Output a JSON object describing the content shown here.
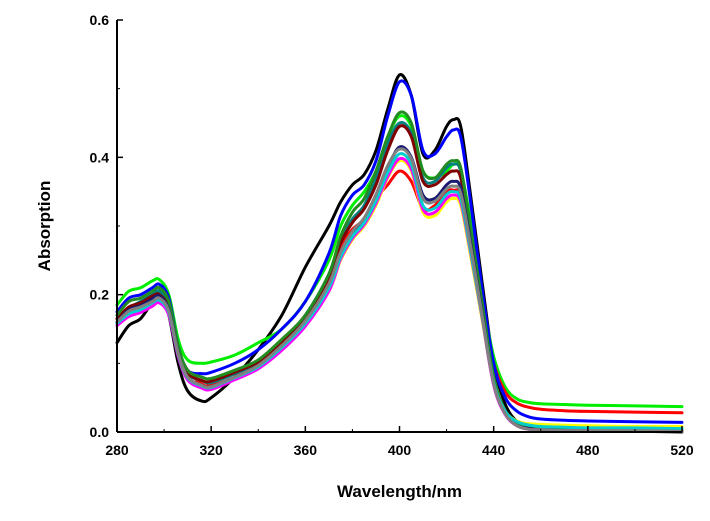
{
  "chart_data": {
    "type": "line",
    "title": "",
    "xlabel": "Wavelength/nm",
    "ylabel": "Absorption",
    "xlim": [
      280,
      520
    ],
    "ylim": [
      0.0,
      0.6
    ],
    "x_ticks": [
      280,
      320,
      360,
      400,
      440,
      480,
      520
    ],
    "x_tick_labels": [
      "280",
      "320",
      "360",
      "400",
      "440",
      "480",
      "520"
    ],
    "y_ticks": [
      0.0,
      0.2,
      0.4,
      0.6
    ],
    "y_tick_labels": [
      "0.0",
      "0.2",
      "0.4",
      "0.6"
    ],
    "grid": false,
    "legend": "none",
    "x": [
      280,
      285,
      290,
      295,
      298,
      302,
      306,
      310,
      316,
      320,
      330,
      340,
      350,
      360,
      370,
      375,
      380,
      385,
      390,
      395,
      400,
      405,
      410,
      415,
      420,
      423,
      426,
      430,
      435,
      440,
      445,
      450,
      455,
      460,
      470,
      480,
      500,
      520
    ],
    "series": [
      {
        "color": "#000000",
        "values": [
          0.13,
          0.155,
          0.165,
          0.19,
          0.205,
          0.17,
          0.1,
          0.06,
          0.045,
          0.05,
          0.08,
          0.12,
          0.17,
          0.24,
          0.3,
          0.335,
          0.36,
          0.375,
          0.41,
          0.47,
          0.52,
          0.49,
          0.405,
          0.41,
          0.445,
          0.455,
          0.445,
          0.35,
          0.22,
          0.1,
          0.04,
          0.015,
          0.008,
          0.005,
          0.003,
          0.002,
          0.001,
          0.0
        ]
      },
      {
        "color": "#00ee00",
        "values": [
          0.185,
          0.205,
          0.21,
          0.22,
          0.222,
          0.2,
          0.135,
          0.105,
          0.1,
          0.102,
          0.112,
          0.13,
          0.15,
          0.19,
          0.25,
          0.3,
          0.33,
          0.35,
          0.38,
          0.43,
          0.46,
          0.445,
          0.38,
          0.37,
          0.38,
          0.39,
          0.382,
          0.31,
          0.2,
          0.11,
          0.065,
          0.048,
          0.043,
          0.041,
          0.04,
          0.039,
          0.038,
          0.037
        ]
      },
      {
        "color": "#ff0000",
        "values": [
          0.165,
          0.18,
          0.185,
          0.195,
          0.2,
          0.18,
          0.12,
          0.09,
          0.07,
          0.068,
          0.08,
          0.1,
          0.13,
          0.17,
          0.22,
          0.27,
          0.295,
          0.31,
          0.34,
          0.36,
          0.38,
          0.365,
          0.325,
          0.33,
          0.35,
          0.352,
          0.345,
          0.28,
          0.18,
          0.1,
          0.058,
          0.042,
          0.036,
          0.033,
          0.031,
          0.03,
          0.029,
          0.028
        ]
      },
      {
        "color": "#0000ff",
        "values": [
          0.175,
          0.195,
          0.2,
          0.21,
          0.215,
          0.195,
          0.125,
          0.09,
          0.085,
          0.087,
          0.1,
          0.12,
          0.15,
          0.19,
          0.26,
          0.315,
          0.345,
          0.36,
          0.395,
          0.46,
          0.51,
          0.49,
          0.41,
          0.405,
          0.43,
          0.44,
          0.43,
          0.34,
          0.21,
          0.1,
          0.05,
          0.03,
          0.022,
          0.019,
          0.017,
          0.016,
          0.015,
          0.014
        ]
      },
      {
        "color": "#008080",
        "values": [
          0.16,
          0.18,
          0.19,
          0.2,
          0.205,
          0.185,
          0.12,
          0.085,
          0.075,
          0.072,
          0.085,
          0.1,
          0.13,
          0.17,
          0.23,
          0.28,
          0.31,
          0.33,
          0.37,
          0.42,
          0.45,
          0.435,
          0.37,
          0.365,
          0.385,
          0.39,
          0.38,
          0.3,
          0.19,
          0.08,
          0.03,
          0.012,
          0.006,
          0.004,
          0.003,
          0.003,
          0.002,
          0.002
        ]
      },
      {
        "color": "#800000",
        "values": [
          0.165,
          0.182,
          0.188,
          0.198,
          0.2,
          0.18,
          0.118,
          0.086,
          0.075,
          0.074,
          0.087,
          0.102,
          0.13,
          0.168,
          0.225,
          0.275,
          0.305,
          0.325,
          0.36,
          0.41,
          0.445,
          0.43,
          0.365,
          0.36,
          0.375,
          0.38,
          0.37,
          0.29,
          0.18,
          0.075,
          0.028,
          0.01,
          0.005,
          0.004,
          0.003,
          0.003,
          0.002,
          0.002
        ]
      },
      {
        "color": "#228b22",
        "values": [
          0.17,
          0.19,
          0.195,
          0.205,
          0.21,
          0.19,
          0.125,
          0.09,
          0.08,
          0.078,
          0.09,
          0.105,
          0.135,
          0.17,
          0.23,
          0.285,
          0.32,
          0.34,
          0.38,
          0.43,
          0.465,
          0.45,
          0.38,
          0.37,
          0.39,
          0.395,
          0.385,
          0.3,
          0.19,
          0.08,
          0.03,
          0.012,
          0.006,
          0.004,
          0.003,
          0.002,
          0.002,
          0.002
        ]
      },
      {
        "color": "#191970",
        "values": [
          0.16,
          0.178,
          0.184,
          0.194,
          0.198,
          0.178,
          0.115,
          0.08,
          0.068,
          0.066,
          0.08,
          0.096,
          0.125,
          0.162,
          0.215,
          0.26,
          0.29,
          0.31,
          0.345,
          0.385,
          0.415,
          0.4,
          0.345,
          0.34,
          0.36,
          0.365,
          0.355,
          0.28,
          0.175,
          0.07,
          0.026,
          0.009,
          0.005,
          0.003,
          0.002,
          0.002,
          0.002,
          0.001
        ]
      },
      {
        "color": "#ffff00",
        "values": [
          0.155,
          0.17,
          0.176,
          0.185,
          0.19,
          0.172,
          0.112,
          0.077,
          0.065,
          0.063,
          0.077,
          0.093,
          0.12,
          0.155,
          0.205,
          0.25,
          0.28,
          0.3,
          0.33,
          0.37,
          0.395,
          0.38,
          0.32,
          0.315,
          0.335,
          0.34,
          0.33,
          0.26,
          0.165,
          0.07,
          0.03,
          0.016,
          0.012,
          0.011,
          0.01,
          0.009,
          0.008,
          0.008
        ]
      },
      {
        "color": "#ff00ff",
        "values": [
          0.155,
          0.168,
          0.174,
          0.183,
          0.188,
          0.17,
          0.11,
          0.076,
          0.064,
          0.062,
          0.076,
          0.092,
          0.119,
          0.154,
          0.205,
          0.252,
          0.282,
          0.302,
          0.333,
          0.372,
          0.398,
          0.383,
          0.324,
          0.32,
          0.34,
          0.345,
          0.335,
          0.265,
          0.168,
          0.068,
          0.025,
          0.009,
          0.004,
          0.003,
          0.002,
          0.002,
          0.001,
          0.001
        ]
      },
      {
        "color": "#00ced1",
        "values": [
          0.158,
          0.172,
          0.178,
          0.188,
          0.192,
          0.174,
          0.113,
          0.079,
          0.067,
          0.065,
          0.079,
          0.095,
          0.123,
          0.158,
          0.21,
          0.255,
          0.285,
          0.305,
          0.337,
          0.378,
          0.405,
          0.39,
          0.33,
          0.326,
          0.346,
          0.35,
          0.34,
          0.268,
          0.17,
          0.072,
          0.03,
          0.015,
          0.01,
          0.008,
          0.007,
          0.006,
          0.006,
          0.005
        ]
      },
      {
        "color": "#808080",
        "values": [
          0.16,
          0.176,
          0.182,
          0.19,
          0.195,
          0.176,
          0.114,
          0.08,
          0.068,
          0.066,
          0.08,
          0.097,
          0.126,
          0.162,
          0.216,
          0.262,
          0.292,
          0.312,
          0.346,
          0.388,
          0.412,
          0.398,
          0.34,
          0.336,
          0.354,
          0.358,
          0.348,
          0.275,
          0.172,
          0.07,
          0.026,
          0.009,
          0.004,
          0.003,
          0.002,
          0.002,
          0.002,
          0.001
        ]
      }
    ]
  }
}
